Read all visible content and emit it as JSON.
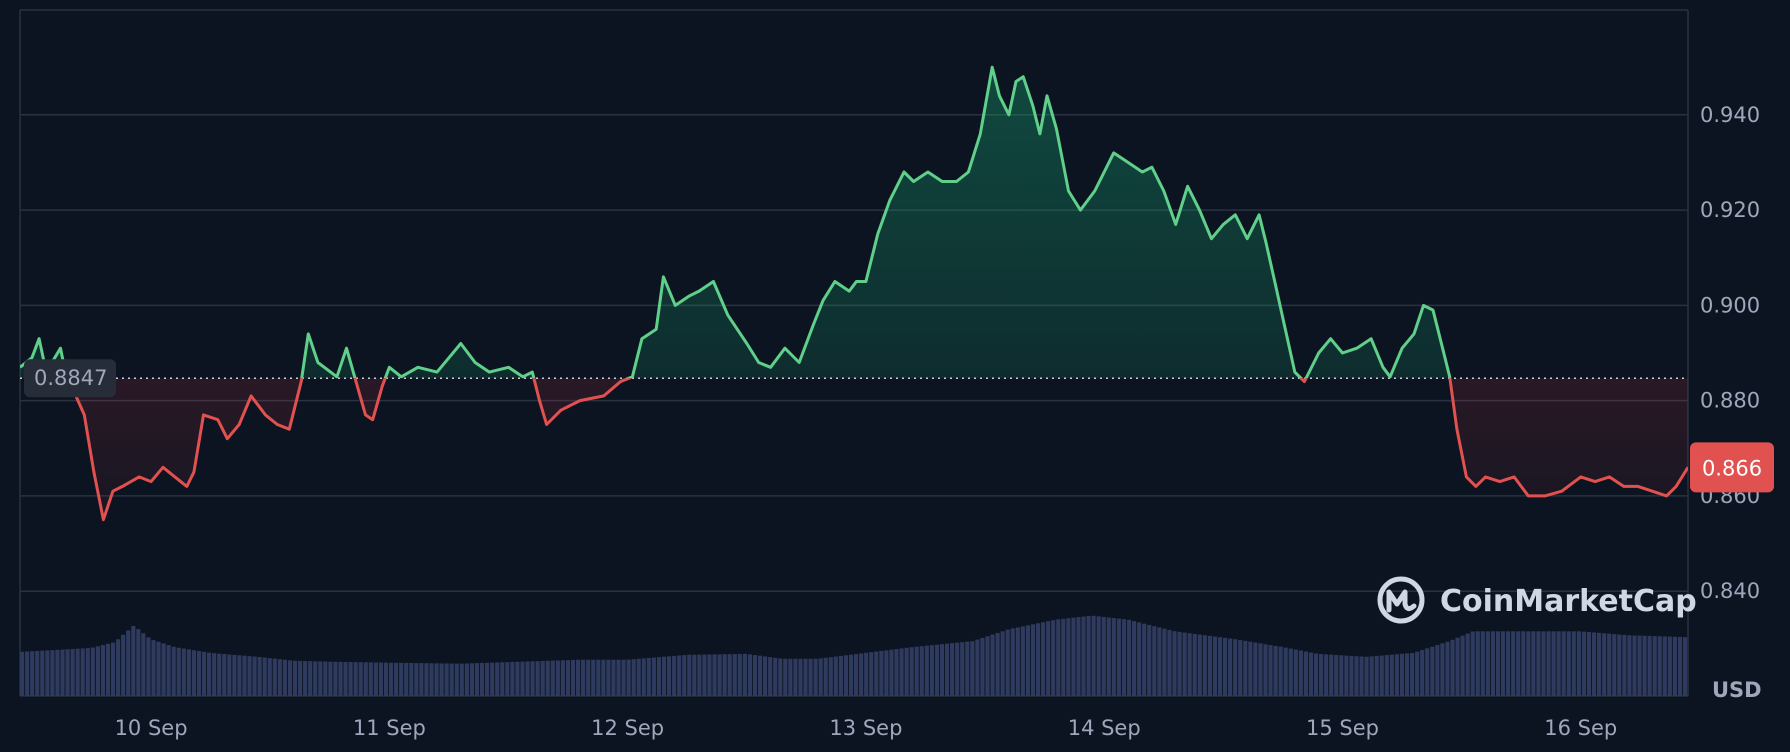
{
  "chart_data": {
    "type": "area",
    "unit": "USD",
    "x_labels": [
      "10 Sep",
      "11 Sep",
      "12 Sep",
      "13 Sep",
      "14 Sep",
      "15 Sep",
      "16 Sep"
    ],
    "y_ticks": [
      0.84,
      0.86,
      0.88,
      0.9,
      0.92,
      0.94
    ],
    "y_tick_labels": [
      "0.840",
      "0.860",
      "0.880",
      "0.900",
      "0.920",
      "0.940"
    ],
    "ylim": [
      0.818,
      0.962
    ],
    "xlim_days": [
      9.45,
      16.45
    ],
    "reference_price": 0.8847,
    "reference_label": "0.8847",
    "current_price": 0.866,
    "current_label": "0.866",
    "grid": "horizontal",
    "colors": {
      "background": "#0d1421",
      "up": "#16c784",
      "up_line": "#5fcf8a",
      "down": "#ea3943",
      "down_line": "#e0514f",
      "grid": "#2a3142",
      "volume": "#2e3a5e"
    },
    "brand": "CoinMarketCap",
    "price_series": {
      "name": "Price",
      "points": [
        [
          9.45,
          0.887
        ],
        [
          9.5,
          0.889
        ],
        [
          9.53,
          0.893
        ],
        [
          9.56,
          0.886
        ],
        [
          9.62,
          0.891
        ],
        [
          9.64,
          0.886
        ],
        [
          9.72,
          0.877
        ],
        [
          9.76,
          0.865
        ],
        [
          9.8,
          0.855
        ],
        [
          9.84,
          0.861
        ],
        [
          9.88,
          0.862
        ],
        [
          9.95,
          0.864
        ],
        [
          10.0,
          0.863
        ],
        [
          10.05,
          0.866
        ],
        [
          10.1,
          0.864
        ],
        [
          10.15,
          0.862
        ],
        [
          10.18,
          0.865
        ],
        [
          10.22,
          0.877
        ],
        [
          10.28,
          0.876
        ],
        [
          10.32,
          0.872
        ],
        [
          10.37,
          0.875
        ],
        [
          10.42,
          0.881
        ],
        [
          10.48,
          0.877
        ],
        [
          10.53,
          0.875
        ],
        [
          10.58,
          0.874
        ],
        [
          10.63,
          0.884
        ],
        [
          10.66,
          0.894
        ],
        [
          10.7,
          0.888
        ],
        [
          10.78,
          0.885
        ],
        [
          10.82,
          0.891
        ],
        [
          10.86,
          0.884
        ],
        [
          10.9,
          0.877
        ],
        [
          10.93,
          0.876
        ],
        [
          10.97,
          0.883
        ],
        [
          11.0,
          0.887
        ],
        [
          11.05,
          0.885
        ],
        [
          11.12,
          0.887
        ],
        [
          11.2,
          0.886
        ],
        [
          11.25,
          0.889
        ],
        [
          11.3,
          0.892
        ],
        [
          11.36,
          0.888
        ],
        [
          11.42,
          0.886
        ],
        [
          11.5,
          0.887
        ],
        [
          11.56,
          0.885
        ],
        [
          11.6,
          0.886
        ],
        [
          11.63,
          0.88
        ],
        [
          11.66,
          0.875
        ],
        [
          11.72,
          0.878
        ],
        [
          11.8,
          0.88
        ],
        [
          11.9,
          0.881
        ],
        [
          11.97,
          0.884
        ],
        [
          12.02,
          0.885
        ],
        [
          12.06,
          0.893
        ],
        [
          12.12,
          0.895
        ],
        [
          12.15,
          0.906
        ],
        [
          12.2,
          0.9
        ],
        [
          12.26,
          0.902
        ],
        [
          12.3,
          0.903
        ],
        [
          12.36,
          0.905
        ],
        [
          12.42,
          0.898
        ],
        [
          12.5,
          0.892
        ],
        [
          12.55,
          0.888
        ],
        [
          12.6,
          0.887
        ],
        [
          12.66,
          0.891
        ],
        [
          12.72,
          0.888
        ],
        [
          12.78,
          0.896
        ],
        [
          12.82,
          0.901
        ],
        [
          12.87,
          0.905
        ],
        [
          12.93,
          0.903
        ],
        [
          12.96,
          0.905
        ],
        [
          13.0,
          0.905
        ],
        [
          13.05,
          0.915
        ],
        [
          13.1,
          0.922
        ],
        [
          13.16,
          0.928
        ],
        [
          13.2,
          0.926
        ],
        [
          13.26,
          0.928
        ],
        [
          13.32,
          0.926
        ],
        [
          13.38,
          0.926
        ],
        [
          13.43,
          0.928
        ],
        [
          13.48,
          0.936
        ],
        [
          13.53,
          0.95
        ],
        [
          13.56,
          0.944
        ],
        [
          13.6,
          0.94
        ],
        [
          13.63,
          0.947
        ],
        [
          13.66,
          0.948
        ],
        [
          13.7,
          0.942
        ],
        [
          13.73,
          0.936
        ],
        [
          13.76,
          0.944
        ],
        [
          13.8,
          0.937
        ],
        [
          13.85,
          0.924
        ],
        [
          13.9,
          0.92
        ],
        [
          13.96,
          0.924
        ],
        [
          14.0,
          0.928
        ],
        [
          14.04,
          0.932
        ],
        [
          14.1,
          0.93
        ],
        [
          14.16,
          0.928
        ],
        [
          14.2,
          0.929
        ],
        [
          14.25,
          0.924
        ],
        [
          14.3,
          0.917
        ],
        [
          14.35,
          0.925
        ],
        [
          14.4,
          0.92
        ],
        [
          14.45,
          0.914
        ],
        [
          14.5,
          0.917
        ],
        [
          14.55,
          0.919
        ],
        [
          14.6,
          0.914
        ],
        [
          14.65,
          0.919
        ],
        [
          14.68,
          0.913
        ],
        [
          14.72,
          0.904
        ],
        [
          14.76,
          0.895
        ],
        [
          14.8,
          0.886
        ],
        [
          14.84,
          0.884
        ],
        [
          14.9,
          0.89
        ],
        [
          14.95,
          0.893
        ],
        [
          15.0,
          0.89
        ],
        [
          15.06,
          0.891
        ],
        [
          15.12,
          0.893
        ],
        [
          15.17,
          0.887
        ],
        [
          15.2,
          0.885
        ],
        [
          15.25,
          0.891
        ],
        [
          15.3,
          0.894
        ],
        [
          15.34,
          0.9
        ],
        [
          15.38,
          0.899
        ],
        [
          15.42,
          0.891
        ],
        [
          15.45,
          0.885
        ],
        [
          15.48,
          0.874
        ],
        [
          15.52,
          0.864
        ],
        [
          15.56,
          0.862
        ],
        [
          15.6,
          0.864
        ],
        [
          15.66,
          0.863
        ],
        [
          15.72,
          0.864
        ],
        [
          15.78,
          0.86
        ],
        [
          15.85,
          0.86
        ],
        [
          15.92,
          0.861
        ],
        [
          16.0,
          0.864
        ],
        [
          16.06,
          0.863
        ],
        [
          16.12,
          0.864
        ],
        [
          16.18,
          0.862
        ],
        [
          16.24,
          0.862
        ],
        [
          16.3,
          0.861
        ],
        [
          16.36,
          0.86
        ],
        [
          16.4,
          0.862
        ],
        [
          16.45,
          0.866
        ]
      ]
    },
    "volume_series": {
      "name": "Volume",
      "points": [
        [
          9.45,
          0.45
        ],
        [
          9.6,
          0.47
        ],
        [
          9.75,
          0.49
        ],
        [
          9.85,
          0.55
        ],
        [
          9.93,
          0.72
        ],
        [
          10.0,
          0.58
        ],
        [
          10.1,
          0.5
        ],
        [
          10.25,
          0.44
        ],
        [
          10.45,
          0.4
        ],
        [
          10.6,
          0.36
        ],
        [
          10.75,
          0.35
        ],
        [
          11.0,
          0.34
        ],
        [
          11.3,
          0.33
        ],
        [
          11.55,
          0.35
        ],
        [
          11.8,
          0.37
        ],
        [
          12.0,
          0.37
        ],
        [
          12.25,
          0.42
        ],
        [
          12.5,
          0.43
        ],
        [
          12.65,
          0.38
        ],
        [
          12.8,
          0.38
        ],
        [
          13.0,
          0.44
        ],
        [
          13.2,
          0.5
        ],
        [
          13.45,
          0.56
        ],
        [
          13.6,
          0.68
        ],
        [
          13.8,
          0.78
        ],
        [
          13.95,
          0.82
        ],
        [
          14.1,
          0.78
        ],
        [
          14.3,
          0.66
        ],
        [
          14.55,
          0.58
        ],
        [
          14.75,
          0.5
        ],
        [
          14.9,
          0.43
        ],
        [
          15.1,
          0.4
        ],
        [
          15.3,
          0.44
        ],
        [
          15.45,
          0.56
        ],
        [
          15.55,
          0.66
        ],
        [
          15.8,
          0.66
        ],
        [
          16.0,
          0.66
        ],
        [
          16.2,
          0.62
        ],
        [
          16.45,
          0.6
        ]
      ]
    }
  }
}
